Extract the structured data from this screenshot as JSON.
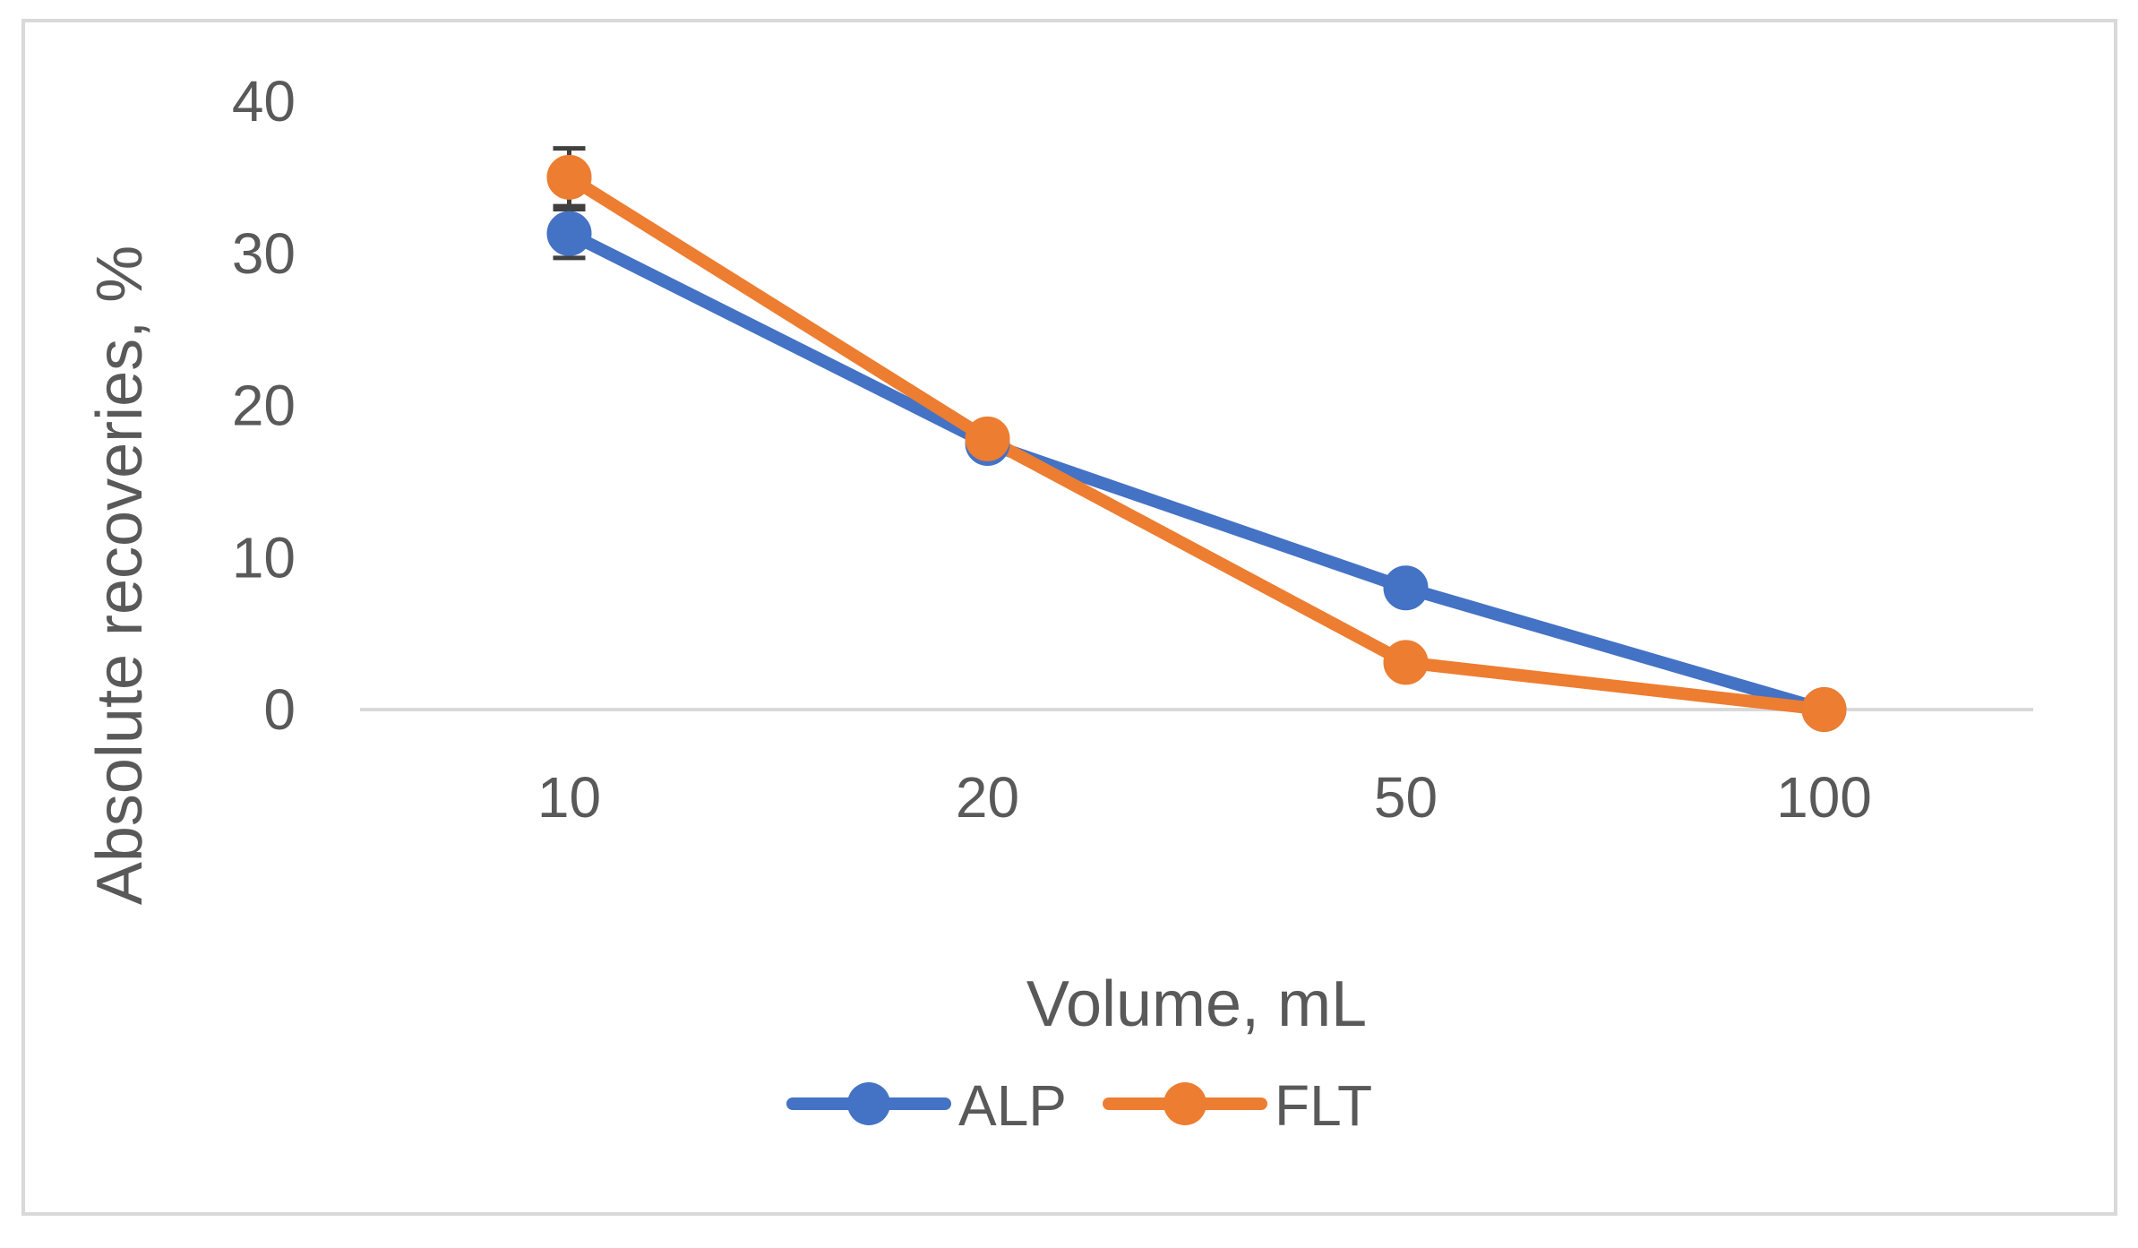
{
  "chart_data": {
    "type": "line",
    "title": "",
    "xlabel": "Volume, mL",
    "ylabel": "Absolute recoveries, %",
    "categories": [
      "10",
      "20",
      "50",
      "100"
    ],
    "ylim": [
      0,
      40
    ],
    "yticks": [
      0,
      10,
      20,
      30,
      40
    ],
    "grid": false,
    "legend_position": "bottom",
    "series": [
      {
        "name": "ALP",
        "color": "#4472C4",
        "values": [
          31.3,
          17.5,
          8.0,
          0.0
        ],
        "error": [
          1.6,
          0,
          0,
          0
        ]
      },
      {
        "name": "FLT",
        "color": "#ED7D31",
        "values": [
          35.0,
          17.8,
          3.1,
          0.0
        ],
        "error": [
          1.9,
          0,
          0,
          0
        ]
      }
    ]
  }
}
